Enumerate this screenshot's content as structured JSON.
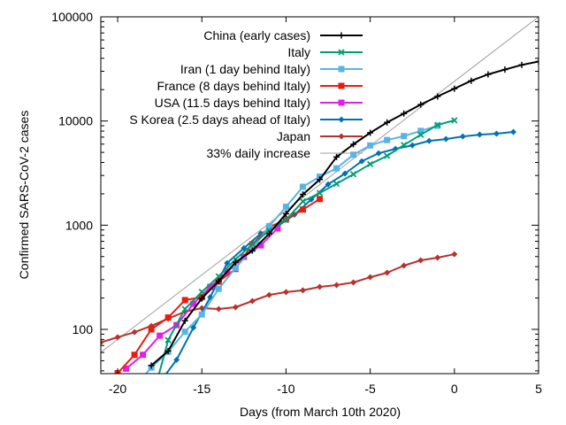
{
  "chart_data": {
    "type": "line",
    "title": "",
    "xlabel": "Days (from March 10th 2020)",
    "ylabel": "Confirmed SARS-CoV-2 cases",
    "xlim": [
      -21,
      5
    ],
    "ylim": [
      37.6,
      100000
    ],
    "yscale": "log",
    "grid": false,
    "legend_position": "top-left-inside",
    "x_ticks": [
      -20,
      -15,
      -10,
      -5,
      0,
      5
    ],
    "x_tick_labels": [
      "-20",
      "-15",
      "-10",
      "-5",
      "0",
      "5"
    ],
    "y_ticks": [
      100,
      1000,
      10000,
      100000
    ],
    "y_tick_labels": [
      "100",
      "1000",
      "10000",
      "100000"
    ],
    "series": [
      {
        "name": "China (early cases)",
        "color": "#000000",
        "marker": "plus",
        "x": [
          -18,
          -17,
          -16,
          -15,
          -14,
          -13,
          -12,
          -11,
          -10,
          -9,
          -8,
          -7,
          -6,
          -5,
          -4,
          -3,
          -2,
          -1,
          0,
          1,
          2,
          3,
          4,
          5
        ],
        "values": [
          45,
          62,
          121,
          198,
          291,
          440,
          571,
          830,
          1287,
          1975,
          2744,
          4515,
          5974,
          7711,
          9692,
          11791,
          14380,
          17205,
          20438,
          24324,
          28018,
          31161,
          34546,
          37198
        ]
      },
      {
        "name": "Italy",
        "color": "#009e73",
        "marker": "cross",
        "x": [
          -18,
          -17,
          -16,
          -15,
          -14,
          -13,
          -12,
          -11,
          -10,
          -9,
          -8,
          -7,
          -6,
          -5,
          -4,
          -3,
          -2,
          -1,
          0
        ],
        "values": [
          20,
          79,
          157,
          229,
          323,
          470,
          655,
          889,
          1128,
          1694,
          2036,
          2502,
          3089,
          3858,
          4636,
          5883,
          7375,
          9172,
          10149
        ]
      },
      {
        "name": "Iran (1 day behind Italy)",
        "color": "#56b4e9",
        "marker": "square",
        "x": [
          -19,
          -18,
          -17,
          -16,
          -15,
          -14,
          -13,
          -12,
          -11,
          -10,
          -9,
          -8,
          -7,
          -6,
          -5,
          -4,
          -3,
          -2,
          -1
        ],
        "values": [
          28,
          43,
          61,
          95,
          139,
          245,
          388,
          593,
          978,
          1501,
          2336,
          2922,
          3513,
          4747,
          5823,
          6566,
          7161,
          8042,
          9000
        ]
      },
      {
        "name": "France (8 days behind Italy)",
        "color": "#e51e10",
        "marker": "square",
        "x": [
          -20,
          -19,
          -18,
          -17,
          -16,
          -15,
          -14,
          -13,
          -12,
          -11,
          -10,
          -9,
          -8
        ],
        "values": [
          38,
          57,
          100,
          130,
          191,
          204,
          288,
          380,
          656,
          957,
          1134,
          1412,
          1784
        ]
      },
      {
        "name": "USA (11.5 days behind Italy)",
        "color": "#e51ee5",
        "marker": "square",
        "x": [
          -19.5,
          -18.5,
          -17.5,
          -16.5,
          -15.5,
          -14.5,
          -13.5,
          -12.5,
          -11.5,
          -10.5
        ],
        "values": [
          42,
          57,
          87,
          110,
          176,
          256,
          357,
          497,
          641,
          931
        ]
      },
      {
        "name": "S Korea (2.5 days ahead of Italy)",
        "color": "#0072b2",
        "marker": "diamond",
        "x": [
          -17.5,
          -16.5,
          -15.5,
          -14.5,
          -13.5,
          -12.5,
          -11.5,
          -10.5,
          -9.5,
          -8.5,
          -7.5,
          -6.5,
          -5.5,
          -4.5,
          -3.5,
          -2.5,
          -1.5,
          -0.5,
          0.5,
          1.5,
          2.5,
          3.5
        ],
        "values": [
          31,
          51,
          104,
          204,
          433,
          602,
          833,
          977,
          1261,
          1766,
          2470,
          3130,
          4110,
          4900,
          5410,
          5850,
          6450,
          6710,
          7110,
          7400,
          7550,
          7850
        ]
      },
      {
        "name": "Japan",
        "color": "#b8312f",
        "marker": "diamond",
        "x": [
          -21,
          -20,
          -19,
          -18,
          -17,
          -16,
          -15,
          -14,
          -13,
          -12,
          -11,
          -10,
          -9,
          -8,
          -7,
          -6,
          -5,
          -4,
          -3,
          -2,
          -1,
          0
        ],
        "values": [
          75,
          84,
          94,
          108,
          127,
          148,
          160,
          157,
          163,
          187,
          214,
          228,
          237,
          256,
          266,
          282,
          317,
          350,
          409,
          460,
          488,
          527
        ]
      },
      {
        "name": "33% daily increase",
        "color": "#a0a0a0",
        "marker": "none",
        "reference": true,
        "growth_rate": 0.33,
        "anchor": {
          "x": 5,
          "y": 100000
        }
      }
    ]
  }
}
